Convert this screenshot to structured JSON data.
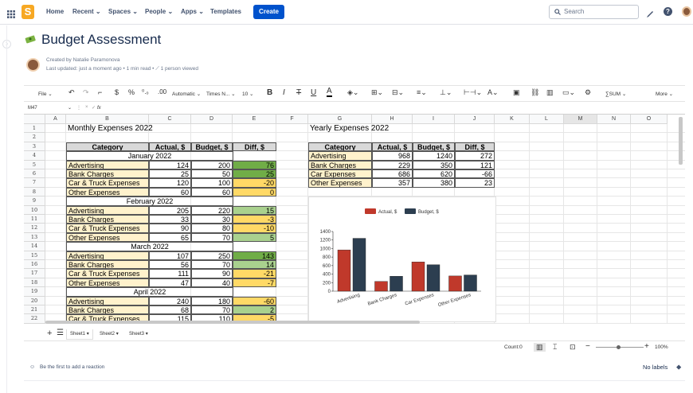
{
  "nav": {
    "home": "Home",
    "recent": "Recent",
    "spaces": "Spaces",
    "people": "People",
    "apps": "Apps",
    "templates": "Templates",
    "create": "Create",
    "search_placeholder": "Search"
  },
  "page": {
    "title": "Budget Assessment",
    "created_by": "Created by Natalie Paramonova",
    "last_updated": "Last updated: just a moment ago",
    "read_time": "1 min read",
    "viewed": "1 person viewed"
  },
  "toolbar": {
    "file": "File",
    "currency": "$",
    "percent": "%",
    "decimals": "⁰.₀",
    "format": "Automatic",
    "font": "Times N...",
    "size": "10",
    "bold": "B",
    "italic": "I",
    "strike": "T",
    "underline": "U",
    "text_color": "A",
    "sum": "SUM",
    "more": "More"
  },
  "formula_bar": {
    "cell_ref": "M47",
    "fx": "fx"
  },
  "columns": [
    "A",
    "B",
    "C",
    "D",
    "E",
    "F",
    "G",
    "H",
    "I",
    "J",
    "K",
    "L",
    "M",
    "N",
    "O"
  ],
  "rows": [
    "1",
    "2",
    "3",
    "4",
    "5",
    "6",
    "7",
    "8",
    "9",
    "10",
    "11",
    "12",
    "13",
    "14",
    "15",
    "16",
    "17",
    "18",
    "19",
    "20",
    "21",
    "22"
  ],
  "monthly": {
    "title": "Monthly Expenses 2022",
    "headers": [
      "Category",
      "Actual, $",
      "Budget, $",
      "Diff, $"
    ],
    "months": [
      {
        "name": "January 2022",
        "items": [
          [
            "Advertising",
            "124",
            "200",
            "76"
          ],
          [
            "Bank Charges",
            "25",
            "50",
            "25"
          ],
          [
            "Car & Truck Expenses",
            "120",
            "100",
            "-20"
          ],
          [
            "Other Expenses",
            "60",
            "60",
            "0"
          ]
        ]
      },
      {
        "name": "February 2022",
        "items": [
          [
            "Advertising",
            "205",
            "220",
            "15"
          ],
          [
            "Bank Charges",
            "33",
            "30",
            "-3"
          ],
          [
            "Car & Truck Expenses",
            "90",
            "80",
            "-10"
          ],
          [
            "Other Expenses",
            "65",
            "70",
            "5"
          ]
        ]
      },
      {
        "name": "March 2022",
        "items": [
          [
            "Advertising",
            "107",
            "250",
            "143"
          ],
          [
            "Bank Charges",
            "56",
            "70",
            "14"
          ],
          [
            "Car & Truck Expenses",
            "111",
            "90",
            "-21"
          ],
          [
            "Other Expenses",
            "47",
            "40",
            "-7"
          ]
        ]
      },
      {
        "name": "April 2022",
        "items": [
          [
            "Advertising",
            "240",
            "180",
            "-60"
          ],
          [
            "Bank Charges",
            "68",
            "70",
            "2"
          ],
          [
            "Car & Truck Expenses",
            "115",
            "110",
            "-5"
          ]
        ]
      }
    ]
  },
  "yearly": {
    "title": "Yearly Expenses 2022",
    "headers": [
      "Category",
      "Actual, $",
      "Budget, $",
      "Diff, $"
    ],
    "items": [
      [
        "Advertising",
        "968",
        "1240",
        "272"
      ],
      [
        "Bank Charges",
        "229",
        "350",
        "121"
      ],
      [
        "Car Expenses",
        "686",
        "620",
        "-66"
      ],
      [
        "Other Expenses",
        "357",
        "380",
        "23"
      ]
    ]
  },
  "chart_data": {
    "type": "bar",
    "categories": [
      "Advertising",
      "Bank Charges",
      "Car Expenses",
      "Other Expenses"
    ],
    "series": [
      {
        "name": "Actual, $",
        "values": [
          968,
          229,
          686,
          357
        ],
        "color": "#c0392b"
      },
      {
        "name": "Budget, $",
        "values": [
          1240,
          350,
          620,
          380
        ],
        "color": "#2c3e50"
      }
    ],
    "ylim": [
      0,
      1400
    ],
    "yticks": [
      "0",
      "200",
      "400",
      "600",
      "800",
      "1000",
      "1200",
      "1400"
    ],
    "legend": "top"
  },
  "colors": {
    "header_fill": "#d9d9d9",
    "category_fill": "#fff2cc",
    "positive_fill": "#70ad47",
    "neutral_fill": "#a9d18e",
    "negative_fill": "#ffd966"
  },
  "sheets": [
    "Sheet1",
    "Sheet2",
    "Sheet3"
  ],
  "status": {
    "count": "Count:0",
    "zoom": "100%"
  },
  "footer": {
    "reaction": "Be the first to add a reaction",
    "labels": "No labels"
  }
}
